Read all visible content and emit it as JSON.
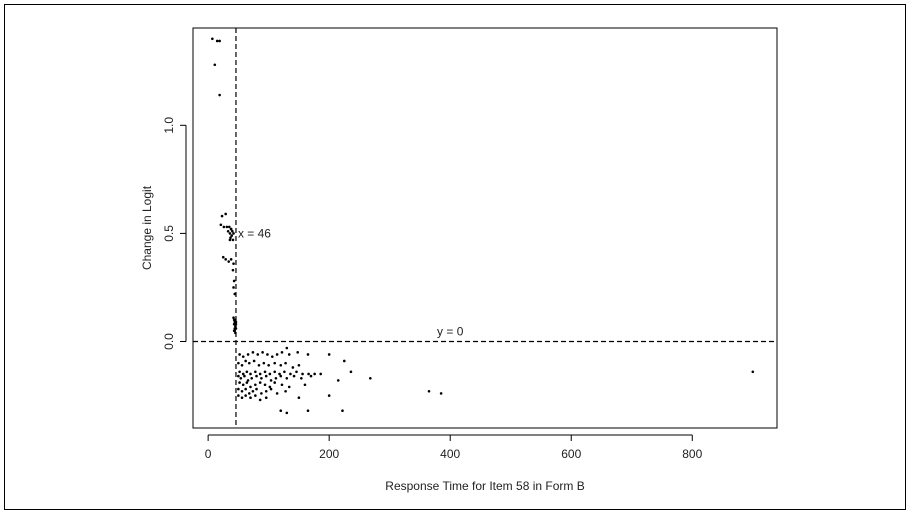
{
  "chart_data": {
    "type": "scatter",
    "title": "",
    "xlabel": "Response Time for Item 58 in Form B",
    "ylabel": "Change in Logit",
    "xlim": [
      -25,
      940
    ],
    "ylim": [
      -0.4,
      1.45
    ],
    "x_ticks": [
      0,
      200,
      400,
      600,
      800
    ],
    "y_ticks": [
      0.0,
      0.5,
      1.0
    ],
    "x_tick_labels": [
      "0",
      "200",
      "400",
      "600",
      "800"
    ],
    "y_tick_labels": [
      "0.0",
      "0.5",
      "1.0"
    ],
    "grid": false,
    "legend": "none",
    "reference_lines": [
      {
        "orientation": "vertical",
        "value": 46,
        "style": "dashed",
        "label": "x = 46"
      },
      {
        "orientation": "horizontal",
        "value": 0,
        "style": "dashed",
        "label": "y = 0"
      }
    ],
    "point_color": "#000000",
    "series": [
      {
        "points": [
          [
            7,
            1.4
          ],
          [
            15,
            1.39
          ],
          [
            19,
            1.39
          ],
          [
            11,
            1.28
          ],
          [
            19,
            1.14
          ],
          [
            23,
            0.58
          ],
          [
            29,
            0.59
          ],
          [
            21,
            0.54
          ],
          [
            26,
            0.53
          ],
          [
            31,
            0.53
          ],
          [
            35,
            0.53
          ],
          [
            38,
            0.52
          ],
          [
            33,
            0.51
          ],
          [
            36,
            0.5
          ],
          [
            40,
            0.51
          ],
          [
            39,
            0.49
          ],
          [
            37,
            0.48
          ],
          [
            41,
            0.47
          ],
          [
            36,
            0.47
          ],
          [
            38,
            0.52
          ],
          [
            42,
            0.5
          ],
          [
            25,
            0.39
          ],
          [
            29,
            0.38
          ],
          [
            34,
            0.37
          ],
          [
            38,
            0.38
          ],
          [
            42,
            0.36
          ],
          [
            41,
            0.33
          ],
          [
            43,
            0.28
          ],
          [
            42,
            0.25
          ],
          [
            44,
            0.22
          ],
          [
            42,
            0.11
          ],
          [
            43,
            0.1
          ],
          [
            44,
            0.09
          ],
          [
            45,
            0.1
          ],
          [
            43,
            0.08
          ],
          [
            45,
            0.07
          ],
          [
            44,
            0.06
          ],
          [
            46,
            0.09
          ],
          [
            46,
            0.06
          ],
          [
            44,
            0.05
          ],
          [
            45,
            0.04
          ],
          [
            46,
            0.08
          ],
          [
            43,
            0.05
          ],
          [
            52,
            -0.06
          ],
          [
            58,
            -0.07
          ],
          [
            66,
            -0.06
          ],
          [
            74,
            -0.05
          ],
          [
            82,
            -0.06
          ],
          [
            90,
            -0.05
          ],
          [
            98,
            -0.06
          ],
          [
            106,
            -0.07
          ],
          [
            114,
            -0.06
          ],
          [
            122,
            -0.05
          ],
          [
            130,
            -0.03
          ],
          [
            134,
            -0.06
          ],
          [
            148,
            -0.05
          ],
          [
            165,
            -0.06
          ],
          [
            200,
            -0.06
          ],
          [
            225,
            -0.09
          ],
          [
            50,
            -0.1
          ],
          [
            56,
            -0.11
          ],
          [
            62,
            -0.09
          ],
          [
            68,
            -0.1
          ],
          [
            76,
            -0.09
          ],
          [
            84,
            -0.11
          ],
          [
            92,
            -0.1
          ],
          [
            100,
            -0.11
          ],
          [
            110,
            -0.1
          ],
          [
            120,
            -0.11
          ],
          [
            128,
            -0.1
          ],
          [
            140,
            -0.12
          ],
          [
            150,
            -0.11
          ],
          [
            52,
            -0.14
          ],
          [
            58,
            -0.15
          ],
          [
            64,
            -0.14
          ],
          [
            70,
            -0.15
          ],
          [
            78,
            -0.14
          ],
          [
            86,
            -0.15
          ],
          [
            94,
            -0.14
          ],
          [
            102,
            -0.15
          ],
          [
            110,
            -0.14
          ],
          [
            118,
            -0.15
          ],
          [
            126,
            -0.14
          ],
          [
            136,
            -0.15
          ],
          [
            146,
            -0.14
          ],
          [
            156,
            -0.15
          ],
          [
            166,
            -0.15
          ],
          [
            176,
            -0.15
          ],
          [
            186,
            -0.15
          ],
          [
            236,
            -0.14
          ],
          [
            50,
            -0.16
          ],
          [
            54,
            -0.17
          ],
          [
            60,
            -0.16
          ],
          [
            66,
            -0.18
          ],
          [
            72,
            -0.17
          ],
          [
            80,
            -0.16
          ],
          [
            88,
            -0.17
          ],
          [
            96,
            -0.16
          ],
          [
            104,
            -0.18
          ],
          [
            112,
            -0.17
          ],
          [
            120,
            -0.16
          ],
          [
            130,
            -0.17
          ],
          [
            142,
            -0.16
          ],
          [
            154,
            -0.17
          ],
          [
            170,
            -0.16
          ],
          [
            900,
            -0.14
          ],
          [
            52,
            -0.19
          ],
          [
            58,
            -0.2
          ],
          [
            64,
            -0.19
          ],
          [
            70,
            -0.21
          ],
          [
            78,
            -0.2
          ],
          [
            86,
            -0.19
          ],
          [
            94,
            -0.2
          ],
          [
            102,
            -0.21
          ],
          [
            110,
            -0.19
          ],
          [
            122,
            -0.2
          ],
          [
            134,
            -0.21
          ],
          [
            160,
            -0.2
          ],
          [
            215,
            -0.18
          ],
          [
            268,
            -0.17
          ],
          [
            50,
            -0.22
          ],
          [
            56,
            -0.23
          ],
          [
            62,
            -0.22
          ],
          [
            68,
            -0.24
          ],
          [
            74,
            -0.23
          ],
          [
            80,
            -0.22
          ],
          [
            88,
            -0.24
          ],
          [
            96,
            -0.23
          ],
          [
            104,
            -0.22
          ],
          [
            114,
            -0.24
          ],
          [
            128,
            -0.23
          ],
          [
            50,
            -0.25
          ],
          [
            56,
            -0.26
          ],
          [
            62,
            -0.25
          ],
          [
            70,
            -0.26
          ],
          [
            78,
            -0.25
          ],
          [
            86,
            -0.27
          ],
          [
            96,
            -0.26
          ],
          [
            150,
            -0.26
          ],
          [
            200,
            -0.25
          ],
          [
            365,
            -0.23
          ],
          [
            385,
            -0.24
          ],
          [
            120,
            -0.32
          ],
          [
            130,
            -0.33
          ],
          [
            165,
            -0.32
          ],
          [
            222,
            -0.32
          ]
        ]
      }
    ]
  }
}
